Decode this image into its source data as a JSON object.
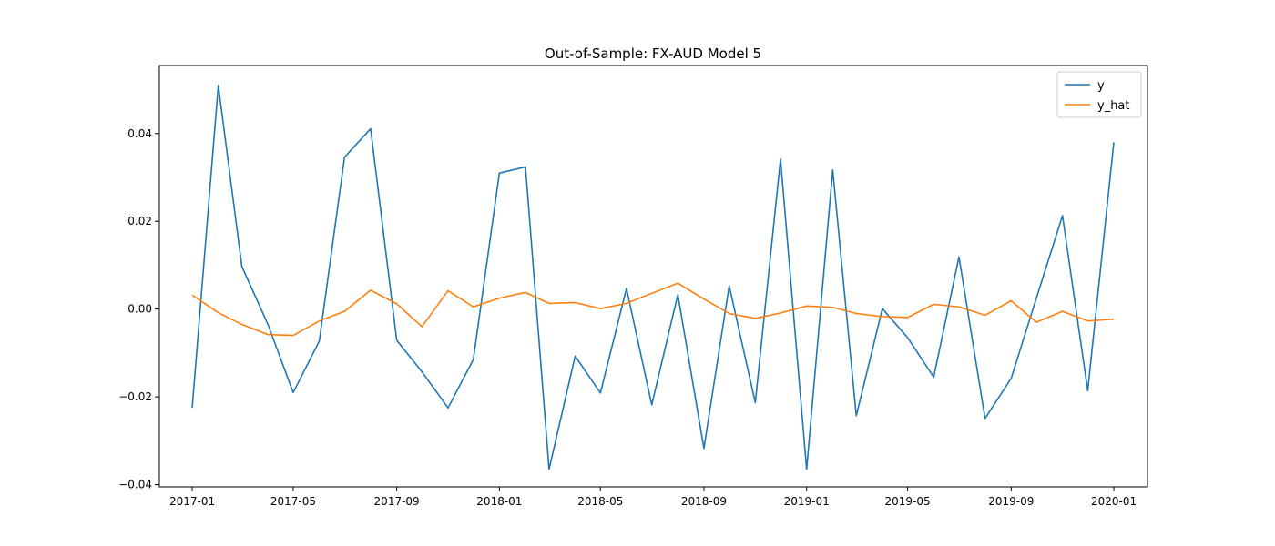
{
  "chart_data": {
    "type": "line",
    "title": "Out-of-Sample: FX-AUD Model 5",
    "xlabel": "",
    "ylabel": "",
    "x": [
      "2017-01-01",
      "2017-02-01",
      "2017-03-01",
      "2017-04-01",
      "2017-05-01",
      "2017-06-01",
      "2017-07-01",
      "2017-08-01",
      "2017-09-01",
      "2017-10-01",
      "2017-11-01",
      "2017-12-01",
      "2018-01-01",
      "2018-02-01",
      "2018-03-01",
      "2018-04-01",
      "2018-05-01",
      "2018-06-01",
      "2018-07-01",
      "2018-08-01",
      "2018-09-01",
      "2018-10-01",
      "2018-11-01",
      "2018-12-01",
      "2019-01-01",
      "2019-02-01",
      "2019-03-01",
      "2019-04-01",
      "2019-05-01",
      "2019-06-01",
      "2019-07-01",
      "2019-08-01",
      "2019-09-01",
      "2019-10-01",
      "2019-11-01",
      "2019-12-01",
      "2020-01-01"
    ],
    "series": [
      {
        "name": "y",
        "color": "#1f77b4",
        "values": [
          -0.0225,
          0.051,
          0.0097,
          -0.0035,
          -0.019,
          -0.0073,
          0.0346,
          0.0411,
          -0.0071,
          -0.0143,
          -0.0225,
          -0.0115,
          0.031,
          0.0324,
          -0.0365,
          -0.0107,
          -0.0191,
          0.0047,
          -0.0218,
          0.0033,
          -0.0317,
          0.0053,
          -0.0213,
          0.0342,
          -0.0365,
          0.0317,
          -0.0243,
          0.0001,
          -0.0065,
          -0.0155,
          0.0119,
          -0.0249,
          -0.0158,
          0.0025,
          0.0213,
          -0.0186,
          0.038
        ]
      },
      {
        "name": "y_hat",
        "color": "#ff7f0e",
        "values": [
          0.0032,
          -0.0008,
          -0.0035,
          -0.0058,
          -0.006,
          -0.0027,
          -0.0005,
          0.0043,
          0.0012,
          -0.004,
          0.0042,
          0.0005,
          0.0025,
          0.0038,
          0.0013,
          0.0015,
          0.0001,
          0.0013,
          0.0036,
          0.0059,
          0.0023,
          -0.001,
          -0.0021,
          -0.0009,
          0.0007,
          0.0004,
          -0.001,
          -0.0017,
          -0.0019,
          0.0011,
          0.0005,
          -0.0014,
          0.0019,
          -0.003,
          -0.0005,
          -0.0027,
          -0.0023
        ]
      }
    ],
    "x_ticks": [
      "2017-01",
      "2017-05",
      "2017-09",
      "2018-01",
      "2018-05",
      "2018-09",
      "2019-01",
      "2019-05",
      "2019-09",
      "2020-01"
    ],
    "y_ticks": [
      -0.04,
      -0.02,
      0.0,
      0.02,
      0.04
    ],
    "y_tick_labels": [
      "−0.04",
      "−0.02",
      "0.00",
      "0.02",
      "0.04"
    ],
    "ylim": [
      -0.0405,
      0.0555
    ],
    "xlim": [
      "2016-11-23",
      "2020-02-10"
    ],
    "grid": false,
    "legend": "top-right"
  }
}
